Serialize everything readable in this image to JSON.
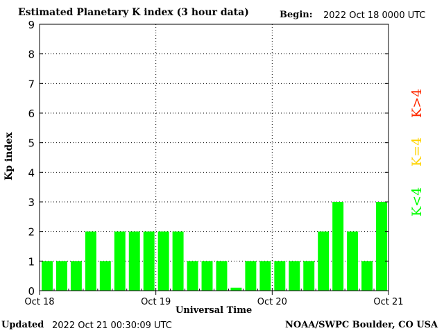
{
  "header": {
    "title": "Estimated Planetary K index (3 hour data)",
    "begin_label": "Begin:",
    "begin_value": "2022 Oct 18 0000 UTC"
  },
  "footer": {
    "updated_label": "Updated",
    "updated_value": "2022 Oct 21 00:30:09 UTC",
    "credit": "NOAA/SWPC Boulder, CO USA"
  },
  "legend": {
    "high": "K>4",
    "equal": "K=4",
    "low": "K<4"
  },
  "colors": {
    "bar": "#00ff00",
    "legend_high": "#ff2a00",
    "legend_equal": "#ffd400",
    "legend_low": "#00ff00"
  },
  "chart_data": {
    "type": "bar",
    "xlabel": "Universal Time",
    "ylabel": "Kp index",
    "ylim": [
      0,
      9
    ],
    "yticks": [
      "0",
      "1",
      "2",
      "3",
      "4",
      "5",
      "6",
      "7",
      "8",
      "9"
    ],
    "xticks": [
      "Oct 18",
      "Oct 19",
      "Oct 20",
      "Oct 21"
    ],
    "bars_per_day": 8,
    "values": [
      1,
      1,
      1,
      2,
      1,
      2,
      2,
      2,
      2,
      2,
      1,
      1,
      1,
      0.1,
      1,
      1,
      1,
      1,
      1,
      2,
      3,
      2,
      1,
      3
    ],
    "grid": "dotted"
  }
}
